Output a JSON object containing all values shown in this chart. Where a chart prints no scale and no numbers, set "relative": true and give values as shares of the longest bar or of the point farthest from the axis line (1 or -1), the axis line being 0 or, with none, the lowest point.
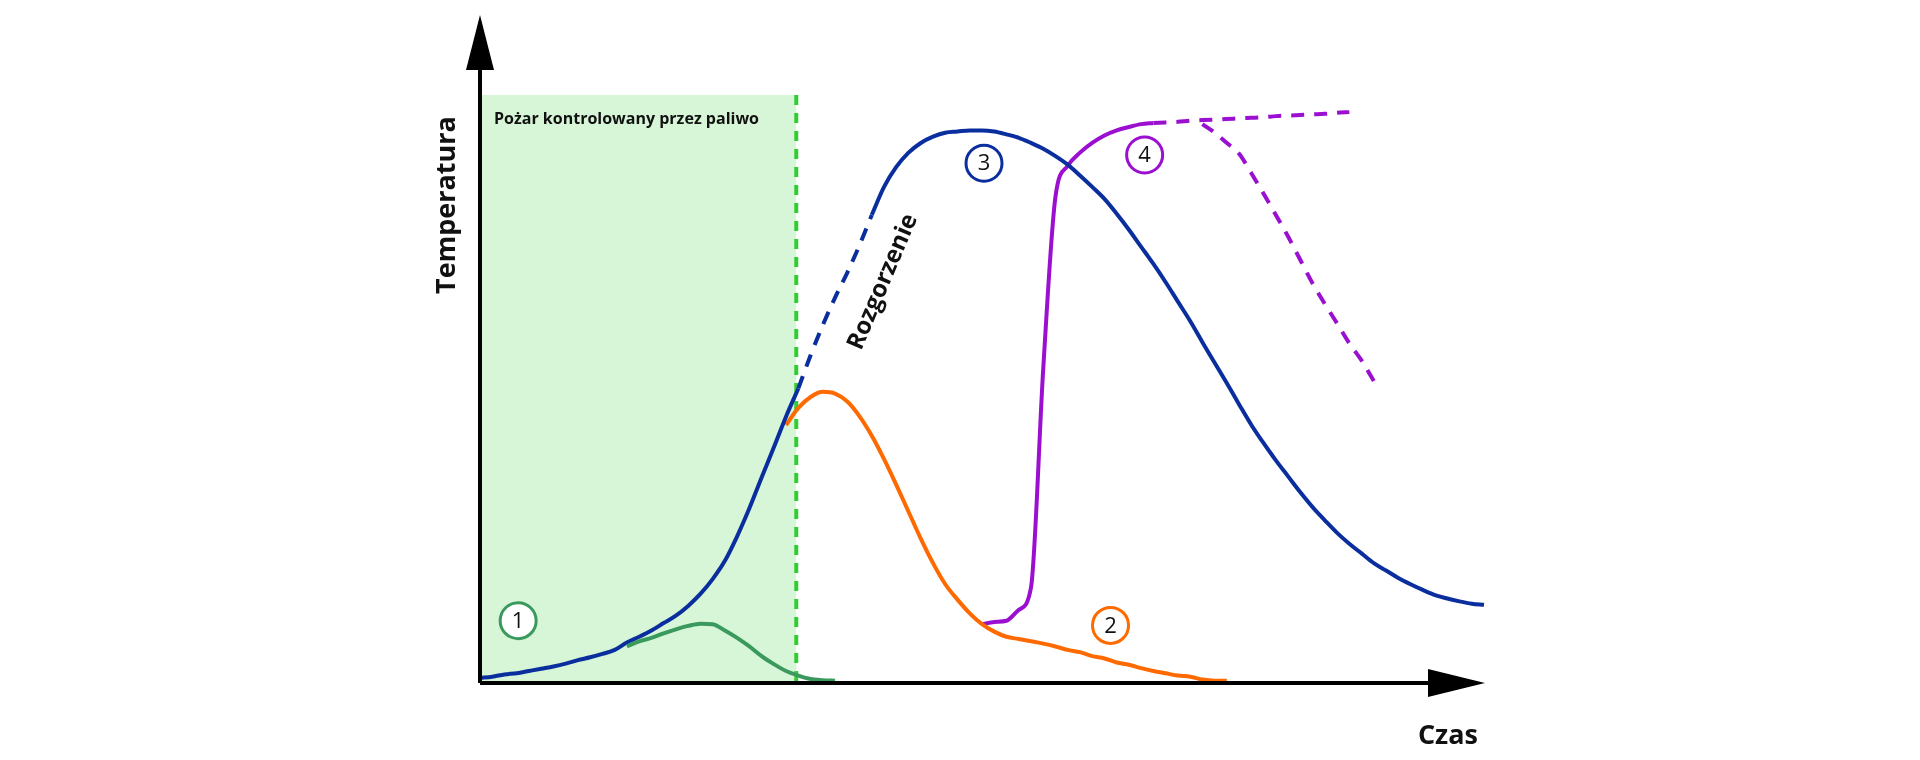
{
  "chart_data": {
    "type": "line",
    "xlabel": "Czas",
    "ylabel": "Temperatura",
    "relative": true,
    "tick_labels": false,
    "marker": "none",
    "categories": [
      null,
      null,
      null,
      null,
      null,
      null,
      null,
      null,
      null,
      null,
      null,
      null,
      null,
      null,
      null,
      null,
      null,
      null,
      null,
      null,
      null,
      null,
      null,
      null,
      null,
      null,
      null,
      null,
      null,
      null,
      null,
      null,
      null,
      null,
      null,
      null,
      null,
      null,
      null,
      null,
      null,
      null,
      null,
      null,
      null,
      null,
      null,
      null,
      null,
      null,
      null,
      null,
      null,
      null,
      null,
      null,
      null,
      null,
      null,
      null,
      null,
      null,
      null,
      null,
      null,
      null,
      null,
      null,
      null,
      null,
      null,
      null,
      null,
      null,
      null,
      null,
      null,
      null,
      null,
      null,
      null,
      null,
      null
    ],
    "annotations": [
      "Pożar kontrolowany przez paliwo",
      "Rozgorzenie"
    ],
    "series": [
      {
        "name": "1",
        "color": "#3a9a5e",
        "line_style": "solid",
        "values": [
          null,
          null,
          null,
          null,
          null,
          null,
          null,
          null,
          null,
          null,
          null,
          null,
          0.064,
          0.073,
          0.079,
          0.087,
          0.094,
          0.1,
          0.104,
          0.103,
          0.092,
          0.079,
          0.064,
          0.047,
          0.033,
          0.021,
          0.013,
          0.007,
          0.005,
          0.004,
          null,
          null,
          null,
          null,
          null,
          null,
          null,
          null,
          null,
          null,
          null,
          null,
          null,
          null,
          null,
          null,
          null,
          null,
          null,
          null,
          null,
          null,
          null,
          null,
          null,
          null,
          null,
          null,
          null,
          null,
          null,
          null,
          null,
          null,
          null,
          null,
          null,
          null,
          null,
          null,
          null,
          null,
          null,
          null,
          null,
          null,
          null,
          null,
          null,
          null,
          null,
          null,
          null
        ]
      },
      {
        "name": "2",
        "color": "#ff6a00",
        "line_style": "solid",
        "values": [
          null,
          null,
          null,
          null,
          null,
          null,
          null,
          null,
          null,
          null,
          null,
          null,
          null,
          null,
          null,
          null,
          null,
          null,
          null,
          null,
          null,
          null,
          null,
          null,
          null,
          0.452,
          0.482,
          0.501,
          0.51,
          0.507,
          0.493,
          0.467,
          0.433,
          0.392,
          0.347,
          0.3,
          0.253,
          0.21,
          0.173,
          0.146,
          0.122,
          0.103,
          0.09,
          0.081,
          0.077,
          0.073,
          0.069,
          0.064,
          0.058,
          0.054,
          0.047,
          0.043,
          0.036,
          0.032,
          0.026,
          0.021,
          0.017,
          0.013,
          0.011,
          0.006,
          0.004,
          0.004,
          null,
          null,
          null,
          null,
          null,
          null,
          null,
          null,
          null,
          null,
          null,
          null,
          null,
          null,
          null,
          null,
          null,
          null,
          null,
          null,
          null
        ]
      },
      {
        "name": "3",
        "color": "#0a2e9e",
        "line_style": "solid",
        "values": [
          0.009,
          0.011,
          0.015,
          0.017,
          0.021,
          0.025,
          0.029,
          0.034,
          0.04,
          0.045,
          0.051,
          0.058,
          0.071,
          0.081,
          0.092,
          0.105,
          0.118,
          0.135,
          0.156,
          0.182,
          0.214,
          0.257,
          0.306,
          0.36,
          0.413,
          0.467,
          0.516,
          null,
          null,
          null,
          null,
          null,
          null,
          null,
          null,
          null,
          null,
          null,
          null,
          null,
          null,
          null,
          null,
          null,
          null,
          null,
          null,
          null,
          null,
          null,
          null,
          null,
          null,
          null,
          null,
          null,
          null,
          null,
          null,
          null,
          null,
          null,
          null,
          null,
          null,
          null,
          null,
          null,
          null,
          null,
          null,
          null,
          null,
          null,
          null,
          null,
          null,
          null,
          null,
          null,
          null,
          null,
          null
        ]
      },
      {
        "color": "#0a2e9e",
        "line_style": "dashed",
        "values": [
          null,
          null,
          null,
          null,
          null,
          null,
          null,
          null,
          null,
          null,
          null,
          null,
          null,
          null,
          null,
          null,
          null,
          null,
          null,
          null,
          null,
          null,
          null,
          null,
          null,
          null,
          0.516,
          0.574,
          0.627,
          0.675,
          0.719,
          0.767,
          0.82,
          null,
          null,
          null,
          null,
          null,
          null,
          null,
          null,
          null,
          null,
          null,
          null,
          null,
          null,
          null,
          null,
          null,
          null,
          null,
          null,
          null,
          null,
          null,
          null,
          null,
          null,
          null,
          null,
          null,
          null,
          null,
          null,
          null,
          null,
          null,
          null,
          null,
          null,
          null,
          null,
          null,
          null,
          null,
          null,
          null,
          null,
          null,
          null,
          null,
          null
        ]
      },
      {
        "color": "#0a2e9e",
        "line_style": "solid",
        "values": [
          null,
          null,
          null,
          null,
          null,
          null,
          null,
          null,
          null,
          null,
          null,
          null,
          null,
          null,
          null,
          null,
          null,
          null,
          null,
          null,
          null,
          null,
          null,
          null,
          null,
          null,
          null,
          null,
          null,
          null,
          null,
          null,
          0.82,
          0.869,
          0.904,
          0.929,
          0.946,
          0.957,
          0.964,
          0.966,
          0.968,
          0.968,
          0.966,
          0.961,
          0.955,
          0.946,
          0.936,
          0.923,
          0.908,
          0.889,
          0.869,
          0.848,
          0.822,
          0.794,
          0.764,
          0.734,
          0.702,
          0.668,
          0.634,
          0.597,
          0.561,
          0.525,
          0.488,
          0.452,
          0.42,
          0.39,
          0.362,
          0.334,
          0.308,
          0.285,
          0.263,
          0.244,
          0.227,
          0.21,
          0.197,
          0.184,
          0.173,
          0.163,
          0.154,
          0.148,
          0.143,
          0.139,
          0.137
        ]
      },
      {
        "name": "4",
        "color": "#9b10d0",
        "line_style": "solid",
        "values": [
          null,
          null,
          null,
          null,
          null,
          null,
          null,
          null,
          null,
          null,
          null,
          null,
          null,
          null,
          null,
          null,
          null,
          null,
          null,
          null,
          null,
          null,
          null,
          null,
          null,
          null,
          null,
          null,
          null,
          null,
          null,
          null,
          null,
          null,
          null,
          null,
          null,
          null,
          null,
          null,
          null,
          0.103,
          0.107,
          0.109,
          0.128,
          0.167,
          0.55,
          0.852,
          0.906,
          0.929,
          0.946,
          0.959,
          0.968,
          0.974,
          0.979,
          0.981,
          null,
          null,
          null,
          null,
          null,
          null,
          null,
          null,
          null,
          null,
          null,
          null,
          null,
          null,
          null,
          null,
          null,
          null,
          null,
          null,
          null,
          null,
          null,
          null,
          null,
          null,
          null
        ]
      },
      {
        "color": "#9b10d0",
        "line_style": "dashed",
        "values": [
          null,
          null,
          null,
          null,
          null,
          null,
          null,
          null,
          null,
          null,
          null,
          null,
          null,
          null,
          null,
          null,
          null,
          null,
          null,
          null,
          null,
          null,
          null,
          null,
          null,
          null,
          null,
          null,
          null,
          null,
          null,
          null,
          null,
          null,
          null,
          null,
          null,
          null,
          null,
          null,
          null,
          null,
          null,
          null,
          null,
          null,
          null,
          null,
          null,
          null,
          null,
          null,
          null,
          null,
          null,
          0.981,
          0.982,
          0.983,
          0.985,
          0.986,
          0.987,
          0.988,
          0.989,
          0.99,
          0.991,
          0.993,
          0.994,
          0.995,
          0.996,
          0.997,
          0.999,
          1.0,
          null,
          null,
          null,
          null,
          null,
          null,
          null,
          null,
          null,
          null,
          null
        ]
      },
      {
        "color": "#9b10d0",
        "line_style": "dashed",
        "values": [
          null,
          null,
          null,
          null,
          null,
          null,
          null,
          null,
          null,
          null,
          null,
          null,
          null,
          null,
          null,
          null,
          null,
          null,
          null,
          null,
          null,
          null,
          null,
          null,
          null,
          null,
          null,
          null,
          null,
          null,
          null,
          null,
          null,
          null,
          null,
          null,
          null,
          null,
          null,
          null,
          null,
          null,
          null,
          null,
          null,
          null,
          null,
          null,
          null,
          null,
          null,
          null,
          null,
          null,
          null,
          null,
          null,
          null,
          null,
          0.979,
          0.964,
          0.946,
          0.927,
          0.893,
          0.857,
          0.82,
          0.782,
          0.741,
          0.7,
          0.664,
          0.63,
          0.595,
          0.565,
          0.529,
          null,
          null,
          null,
          null,
          null,
          null,
          null,
          null,
          null
        ]
      }
    ]
  }
}
